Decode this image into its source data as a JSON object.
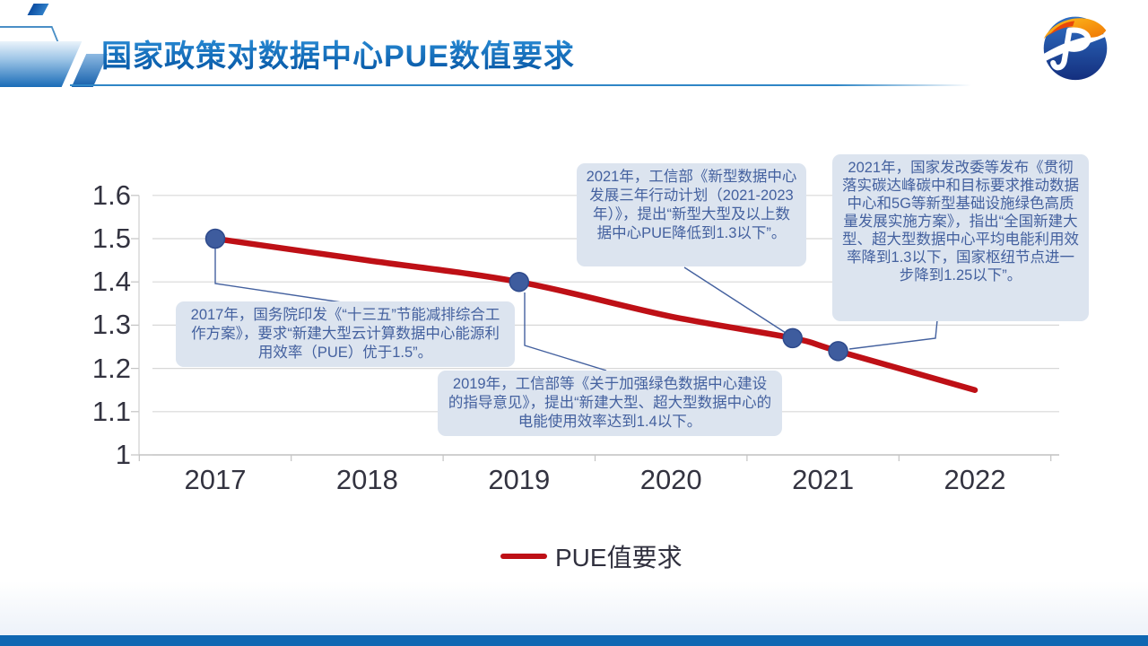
{
  "header": {
    "title": "国家政策对数据中心PUE数值要求",
    "logo_name": "jp-company-logo"
  },
  "colors": {
    "line_red": "#BE1016",
    "marker_blue": "#3E5C9E",
    "marker_edge": "#2E4A8C",
    "annotation_text": "#44619F",
    "annotation_bg": "#DCE4EF",
    "connector": "#44619F",
    "title_blue": "#1173C2",
    "footer_bar_blue": "#0F67B2",
    "grid_gray": "#D8D8D8",
    "axis_text": "#333340"
  },
  "chart_data": {
    "type": "line",
    "title": "",
    "xlabel": "",
    "ylabel": "",
    "ylim": [
      1,
      1.6
    ],
    "grid": true,
    "series": [
      {
        "name": "PUE值要求",
        "x": [
          2017,
          2018,
          2019,
          2020,
          2020.8,
          2021.1,
          2022
        ],
        "values": [
          1.5,
          1.45,
          1.4,
          1.32,
          1.27,
          1.24,
          1.15
        ]
      }
    ],
    "markers": [
      {
        "x": 2017,
        "value": 1.5
      },
      {
        "x": 2019,
        "value": 1.4
      },
      {
        "x": 2020.8,
        "value": 1.27
      },
      {
        "x": 2021.1,
        "value": 1.24
      }
    ],
    "xtick_labels": [
      "2017",
      "2018",
      "2019",
      "2020",
      "2021",
      "2022"
    ],
    "ytick_labels": [
      "1.6",
      "1.5",
      "1.4",
      "1.3",
      "1.2",
      "1.1",
      "1"
    ],
    "legend": {
      "label": "PUE值要求",
      "position": "bottom"
    },
    "annotations": [
      {
        "year": "2017",
        "text": "2017年，国务院印发《“十三五”节能减排综合工作方案》，要求“新建大型云计算数据中心能源利用效率（PUE）优于1.5”。"
      },
      {
        "year": "2019",
        "text": "2019年，工信部等《关于加强绿色数据中心建设的指导意见》，提出“新建大型、超大型数据中心的电能使用效率达到1.4以下。"
      },
      {
        "year": "2021",
        "text": "2021年，工信部《新型数据中心发展三年行动计划（2021-2023年）》，提出“新型大型及以上数据中心PUE降低到1.3以下”。"
      },
      {
        "year": "2021",
        "text": "2021年，国家发改委等发布《贯彻落实碳达峰碳中和目标要求推动数据中心和5G等新型基础设施绿色高质量发展实施方案》，指出“全国新建大型、超大型数据中心平均电能利用效率降到1.3以下，国家枢纽节点进一步降到1.25以下”。"
      }
    ]
  }
}
